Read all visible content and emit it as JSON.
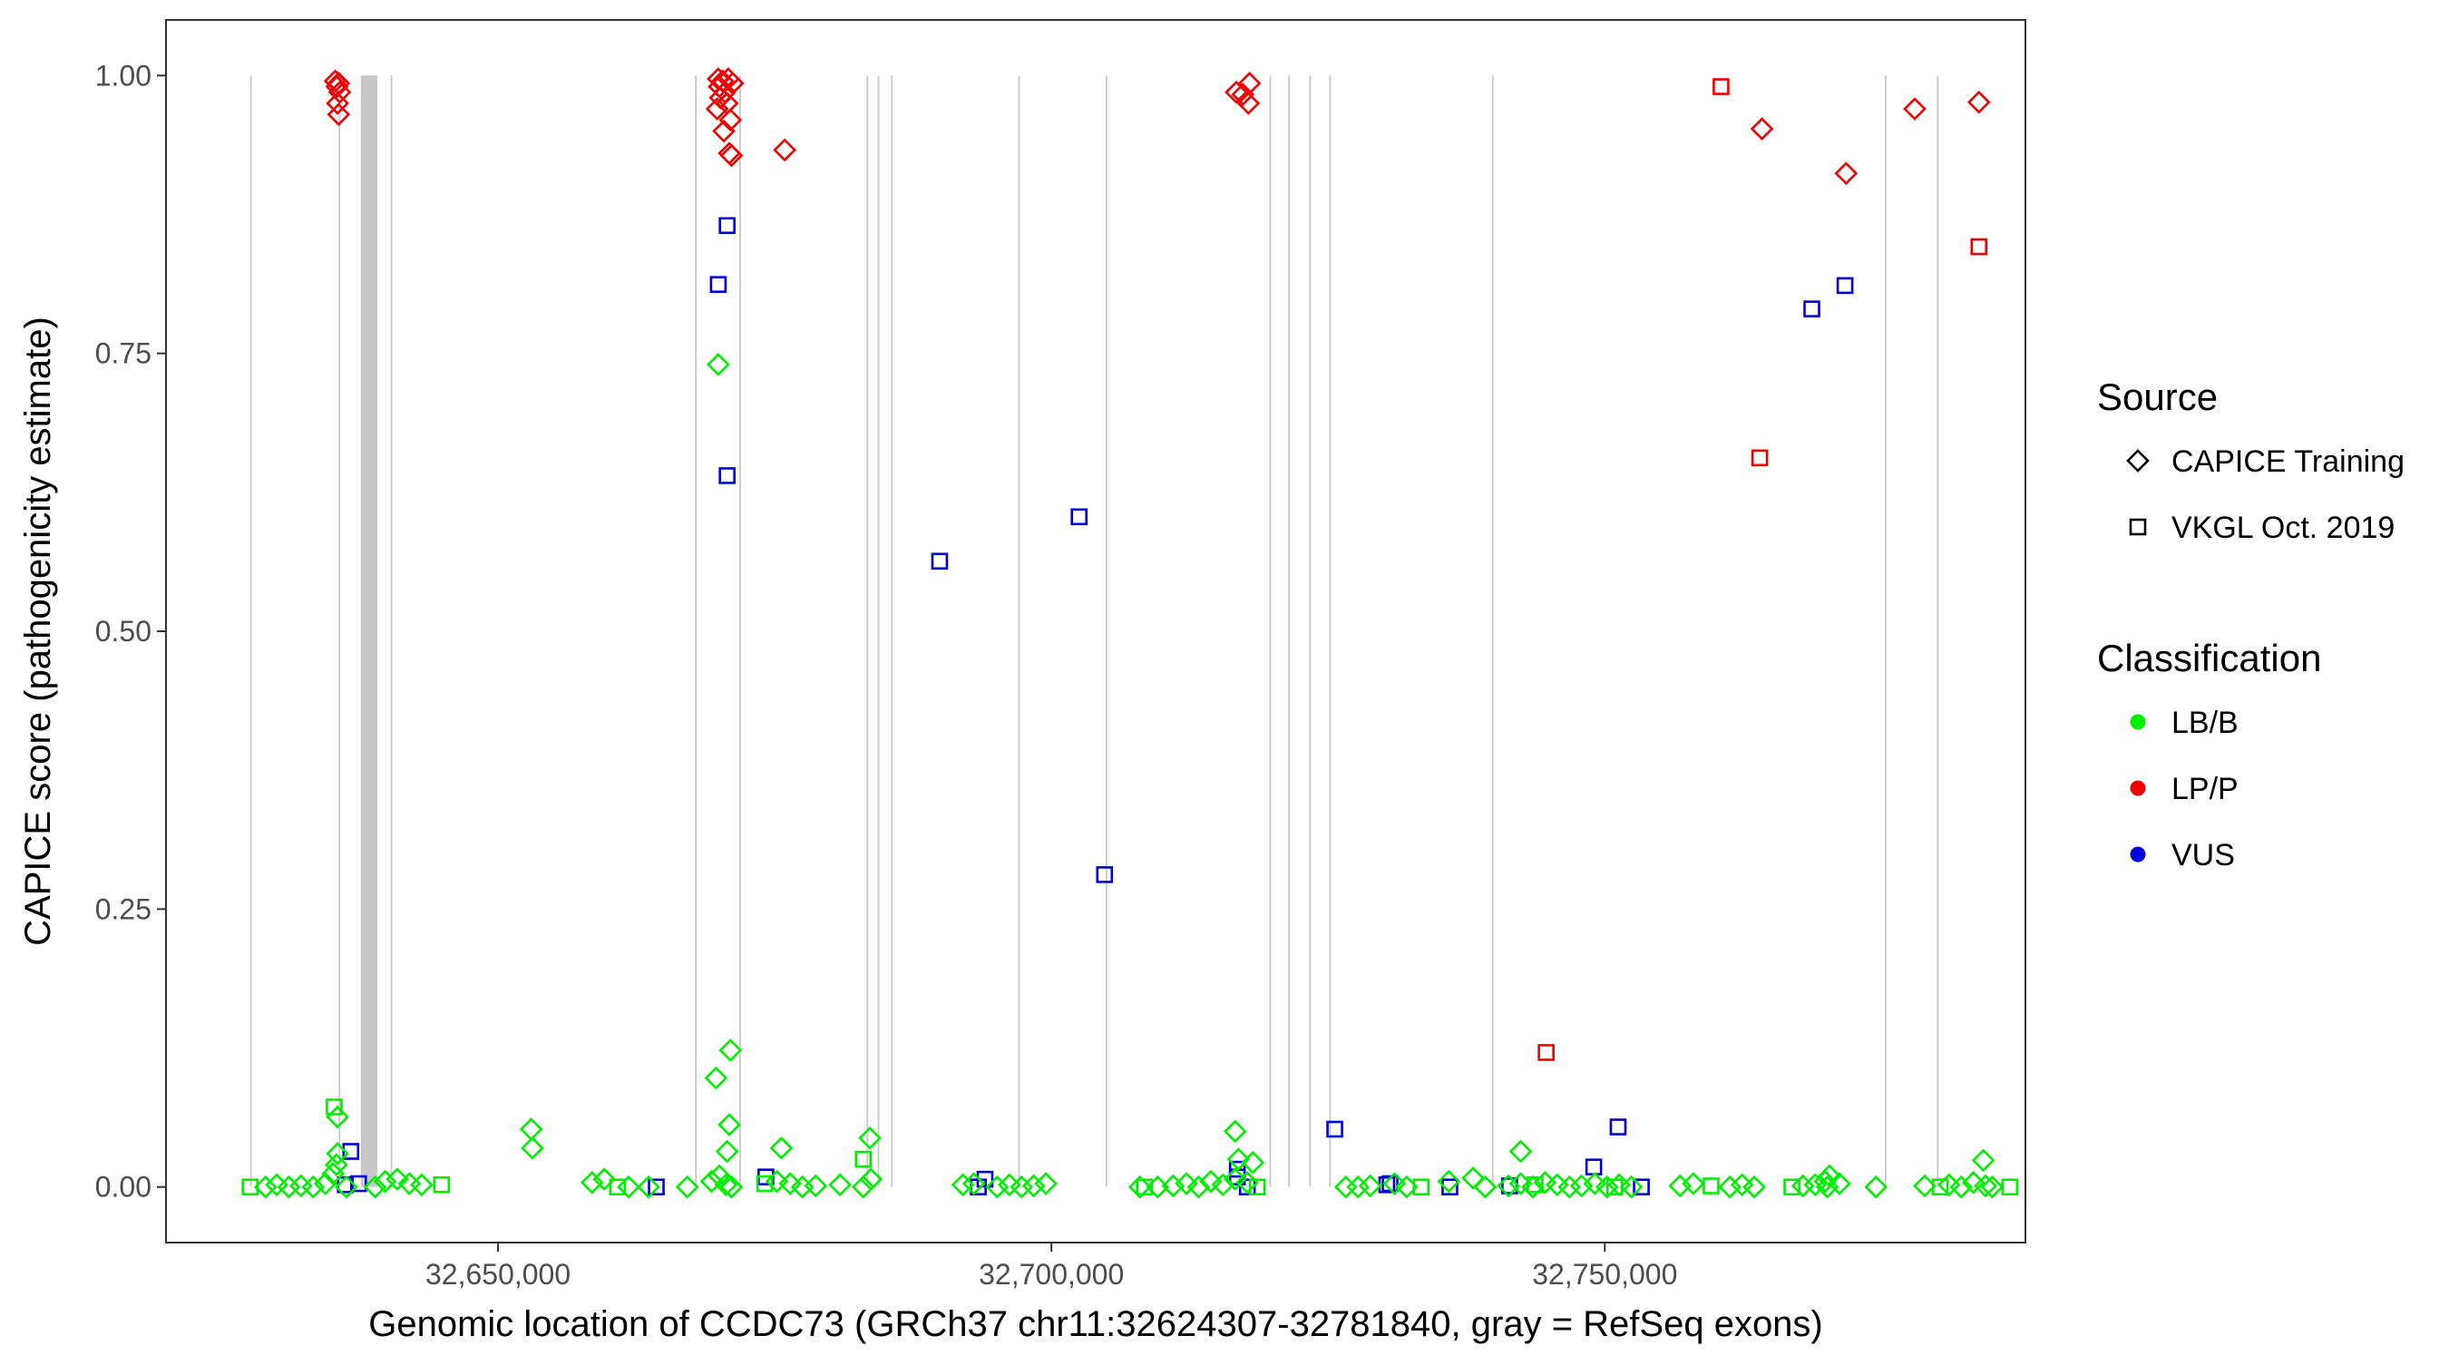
{
  "chart_data": {
    "type": "scatter",
    "title": "",
    "xlabel": "Genomic location of CCDC73 (GRCh37 chr11:32624307-32781840, gray = RefSeq exons)",
    "ylabel": "CAPICE score (pathogenicity estimate)",
    "xlim": [
      32620000,
      32788000
    ],
    "ylim": [
      -0.05,
      1.05
    ],
    "x_ticks": [
      32650000,
      32700000,
      32750000
    ],
    "x_tick_labels": [
      "32,650,000",
      "32,700,000",
      "32,750,000"
    ],
    "y_ticks": [
      0,
      0.25,
      0.5,
      0.75,
      1.0
    ],
    "y_tick_labels": [
      "0.00",
      "0.25",
      "0.50",
      "0.75",
      "1.00"
    ],
    "grid": false,
    "legend_position": "right",
    "colors": {
      "LB/B": "#00EE00",
      "LP/P": "#EE0000",
      "VUS": "#0000DD",
      "exon": "#C8C8C8",
      "frame": "#333333"
    },
    "legend": {
      "source": {
        "title": "Source",
        "items": [
          {
            "label": "CAPICE Training",
            "shape": "diamond"
          },
          {
            "label": "VKGL Oct. 2019",
            "shape": "square"
          }
        ]
      },
      "classification": {
        "title": "Classification",
        "items": [
          {
            "label": "LB/B",
            "color": "#00EE00"
          },
          {
            "label": "LP/P",
            "color": "#EE0000"
          },
          {
            "label": "VUS",
            "color": "#0000DD"
          }
        ]
      }
    },
    "exons": [
      [
        32627600,
        32627700
      ],
      [
        32635600,
        32635700
      ],
      [
        32637600,
        32639100
      ],
      [
        32640300,
        32640400
      ],
      [
        32667800,
        32667900
      ],
      [
        32671800,
        32671900
      ],
      [
        32683300,
        32683400
      ],
      [
        32684300,
        32684400
      ],
      [
        32685500,
        32685600
      ],
      [
        32697000,
        32697100
      ],
      [
        32704900,
        32705000
      ],
      [
        32719700,
        32719800
      ],
      [
        32721400,
        32721500
      ],
      [
        32723300,
        32723400
      ],
      [
        32725100,
        32725200
      ],
      [
        32739800,
        32739900
      ],
      [
        32775300,
        32775400
      ],
      [
        32780000,
        32780100
      ]
    ],
    "series": [
      {
        "source": "CAPICE Training",
        "classification": "LP/P",
        "points": [
          [
            32635300,
            0.995
          ],
          [
            32635600,
            0.993
          ],
          [
            32635450,
            0.99
          ],
          [
            32635700,
            0.985
          ],
          [
            32635500,
            0.975
          ],
          [
            32635600,
            0.965
          ],
          [
            32669900,
            0.997
          ],
          [
            32670300,
            0.995
          ],
          [
            32670800,
            0.997
          ],
          [
            32671200,
            0.993
          ],
          [
            32670000,
            0.99
          ],
          [
            32670500,
            0.985
          ],
          [
            32670100,
            0.98
          ],
          [
            32670700,
            0.975
          ],
          [
            32669800,
            0.97
          ],
          [
            32671000,
            0.96
          ],
          [
            32670400,
            0.95
          ],
          [
            32670900,
            0.93
          ],
          [
            32671100,
            0.928
          ],
          [
            32675900,
            0.933
          ],
          [
            32716700,
            0.985
          ],
          [
            32717300,
            0.983
          ],
          [
            32717900,
            0.993
          ],
          [
            32717800,
            0.975
          ],
          [
            32764200,
            0.952
          ],
          [
            32771800,
            0.912
          ],
          [
            32778000,
            0.97
          ],
          [
            32783800,
            0.976
          ]
        ]
      },
      {
        "source": "VKGL Oct. 2019",
        "classification": "LP/P",
        "points": [
          [
            32760500,
            0.99
          ],
          [
            32764000,
            0.656
          ],
          [
            32783800,
            0.846
          ],
          [
            32744700,
            0.121
          ]
        ]
      },
      {
        "source": "VKGL Oct. 2019",
        "classification": "VUS",
        "points": [
          [
            32670700,
            0.865
          ],
          [
            32669900,
            0.812
          ],
          [
            32670700,
            0.64
          ],
          [
            32689900,
            0.563
          ],
          [
            32702500,
            0.603
          ],
          [
            32704800,
            0.281
          ],
          [
            32768700,
            0.79
          ],
          [
            32771700,
            0.811
          ],
          [
            32725600,
            0.052
          ],
          [
            32751200,
            0.054
          ],
          [
            32636700,
            0.032
          ],
          [
            32749000,
            0.018
          ],
          [
            32716800,
            0.016
          ],
          [
            32716800,
            0.009
          ],
          [
            32674200,
            0.009
          ],
          [
            32694000,
            0.007
          ],
          [
            32636200,
            0.002
          ],
          [
            32637400,
            0.003
          ],
          [
            32664300,
            0.0
          ],
          [
            32693400,
            0.0
          ],
          [
            32730300,
            0.002
          ],
          [
            32730600,
            0.003
          ],
          [
            32736000,
            0.0
          ],
          [
            32741400,
            0.001
          ],
          [
            32753300,
            0.0
          ],
          [
            32717700,
            0.0
          ]
        ]
      },
      {
        "source": "CAPICE Training",
        "classification": "LB/B",
        "points": [
          [
            32669900,
            0.74
          ],
          [
            32671000,
            0.123
          ],
          [
            32669700,
            0.098
          ],
          [
            32635500,
            0.063
          ],
          [
            32670900,
            0.056
          ],
          [
            32653000,
            0.052
          ],
          [
            32653100,
            0.035
          ],
          [
            32670700,
            0.032
          ],
          [
            32675600,
            0.035
          ],
          [
            32683600,
            0.044
          ],
          [
            32716600,
            0.05
          ],
          [
            32716900,
            0.025
          ],
          [
            32718200,
            0.022
          ],
          [
            32742400,
            0.032
          ],
          [
            32770300,
            0.01
          ],
          [
            32769900,
            0.005
          ],
          [
            32784200,
            0.024
          ],
          [
            32635400,
            0.02
          ],
          [
            32635500,
            0.03
          ],
          [
            32635100,
            0.012
          ],
          [
            32629000,
            0.0
          ],
          [
            32630000,
            0.002
          ],
          [
            32631100,
            0.0
          ],
          [
            32632200,
            0.001
          ],
          [
            32633300,
            0.0
          ],
          [
            32634400,
            0.003
          ],
          [
            32636300,
            0.0
          ],
          [
            32638900,
            0.0
          ],
          [
            32639800,
            0.005
          ],
          [
            32640900,
            0.007
          ],
          [
            32642000,
            0.003
          ],
          [
            32643100,
            0.002
          ],
          [
            32658500,
            0.004
          ],
          [
            32659600,
            0.007
          ],
          [
            32661800,
            0.0
          ],
          [
            32663600,
            0.0
          ],
          [
            32667100,
            0.0
          ],
          [
            32669300,
            0.005
          ],
          [
            32670000,
            0.01
          ],
          [
            32670600,
            0.002
          ],
          [
            32671100,
            0.0
          ],
          [
            32675200,
            0.005
          ],
          [
            32676400,
            0.003
          ],
          [
            32677500,
            0.0
          ],
          [
            32678700,
            0.001
          ],
          [
            32680900,
            0.002
          ],
          [
            32683000,
            0.0
          ],
          [
            32683700,
            0.007
          ],
          [
            32692000,
            0.002
          ],
          [
            32693000,
            0.003
          ],
          [
            32695100,
            0.0
          ],
          [
            32696200,
            0.002
          ],
          [
            32697300,
            0.0
          ],
          [
            32698400,
            0.001
          ],
          [
            32699500,
            0.003
          ],
          [
            32708000,
            0.0
          ],
          [
            32709600,
            0.0
          ],
          [
            32711000,
            0.001
          ],
          [
            32712200,
            0.003
          ],
          [
            32713300,
            0.0
          ],
          [
            32714400,
            0.005
          ],
          [
            32715500,
            0.002
          ],
          [
            32716600,
            0.007
          ],
          [
            32717700,
            0.004
          ],
          [
            32726600,
            0.0
          ],
          [
            32727700,
            0.0
          ],
          [
            32728800,
            0.001
          ],
          [
            32731000,
            0.003
          ],
          [
            32732100,
            0.0
          ],
          [
            32735900,
            0.005
          ],
          [
            32738100,
            0.008
          ],
          [
            32739200,
            0.0
          ],
          [
            32741300,
            0.001
          ],
          [
            32742400,
            0.003
          ],
          [
            32743500,
            0.0
          ],
          [
            32744600,
            0.004
          ],
          [
            32745700,
            0.002
          ],
          [
            32746800,
            0.0
          ],
          [
            32747900,
            0.001
          ],
          [
            32749100,
            0.003
          ],
          [
            32750200,
            0.0
          ],
          [
            32751300,
            0.002
          ],
          [
            32752400,
            0.0
          ],
          [
            32756800,
            0.001
          ],
          [
            32758000,
            0.003
          ],
          [
            32761300,
            0.0
          ],
          [
            32762400,
            0.002
          ],
          [
            32763500,
            0.0
          ],
          [
            32767900,
            0.001
          ],
          [
            32769000,
            0.002
          ],
          [
            32770100,
            0.0
          ],
          [
            32771200,
            0.003
          ],
          [
            32774500,
            0.0
          ],
          [
            32778900,
            0.001
          ],
          [
            32781100,
            0.002
          ],
          [
            32782200,
            0.0
          ],
          [
            32783300,
            0.004
          ],
          [
            32784400,
            0.001
          ],
          [
            32785000,
            0.0
          ]
        ]
      },
      {
        "source": "VKGL Oct. 2019",
        "classification": "LB/B",
        "points": [
          [
            32635200,
            0.072
          ],
          [
            32627600,
            0.0
          ],
          [
            32644900,
            0.002
          ],
          [
            32683000,
            0.025
          ],
          [
            32660800,
            0.0
          ],
          [
            32674100,
            0.003
          ],
          [
            32708400,
            0.0
          ],
          [
            32733400,
            0.0
          ],
          [
            32743700,
            0.002
          ],
          [
            32750900,
            0.0
          ],
          [
            32766900,
            0.0
          ],
          [
            32780300,
            0.0
          ],
          [
            32786600,
            0.0
          ],
          [
            32759600,
            0.001
          ],
          [
            32718600,
            0.0
          ]
        ]
      }
    ]
  }
}
